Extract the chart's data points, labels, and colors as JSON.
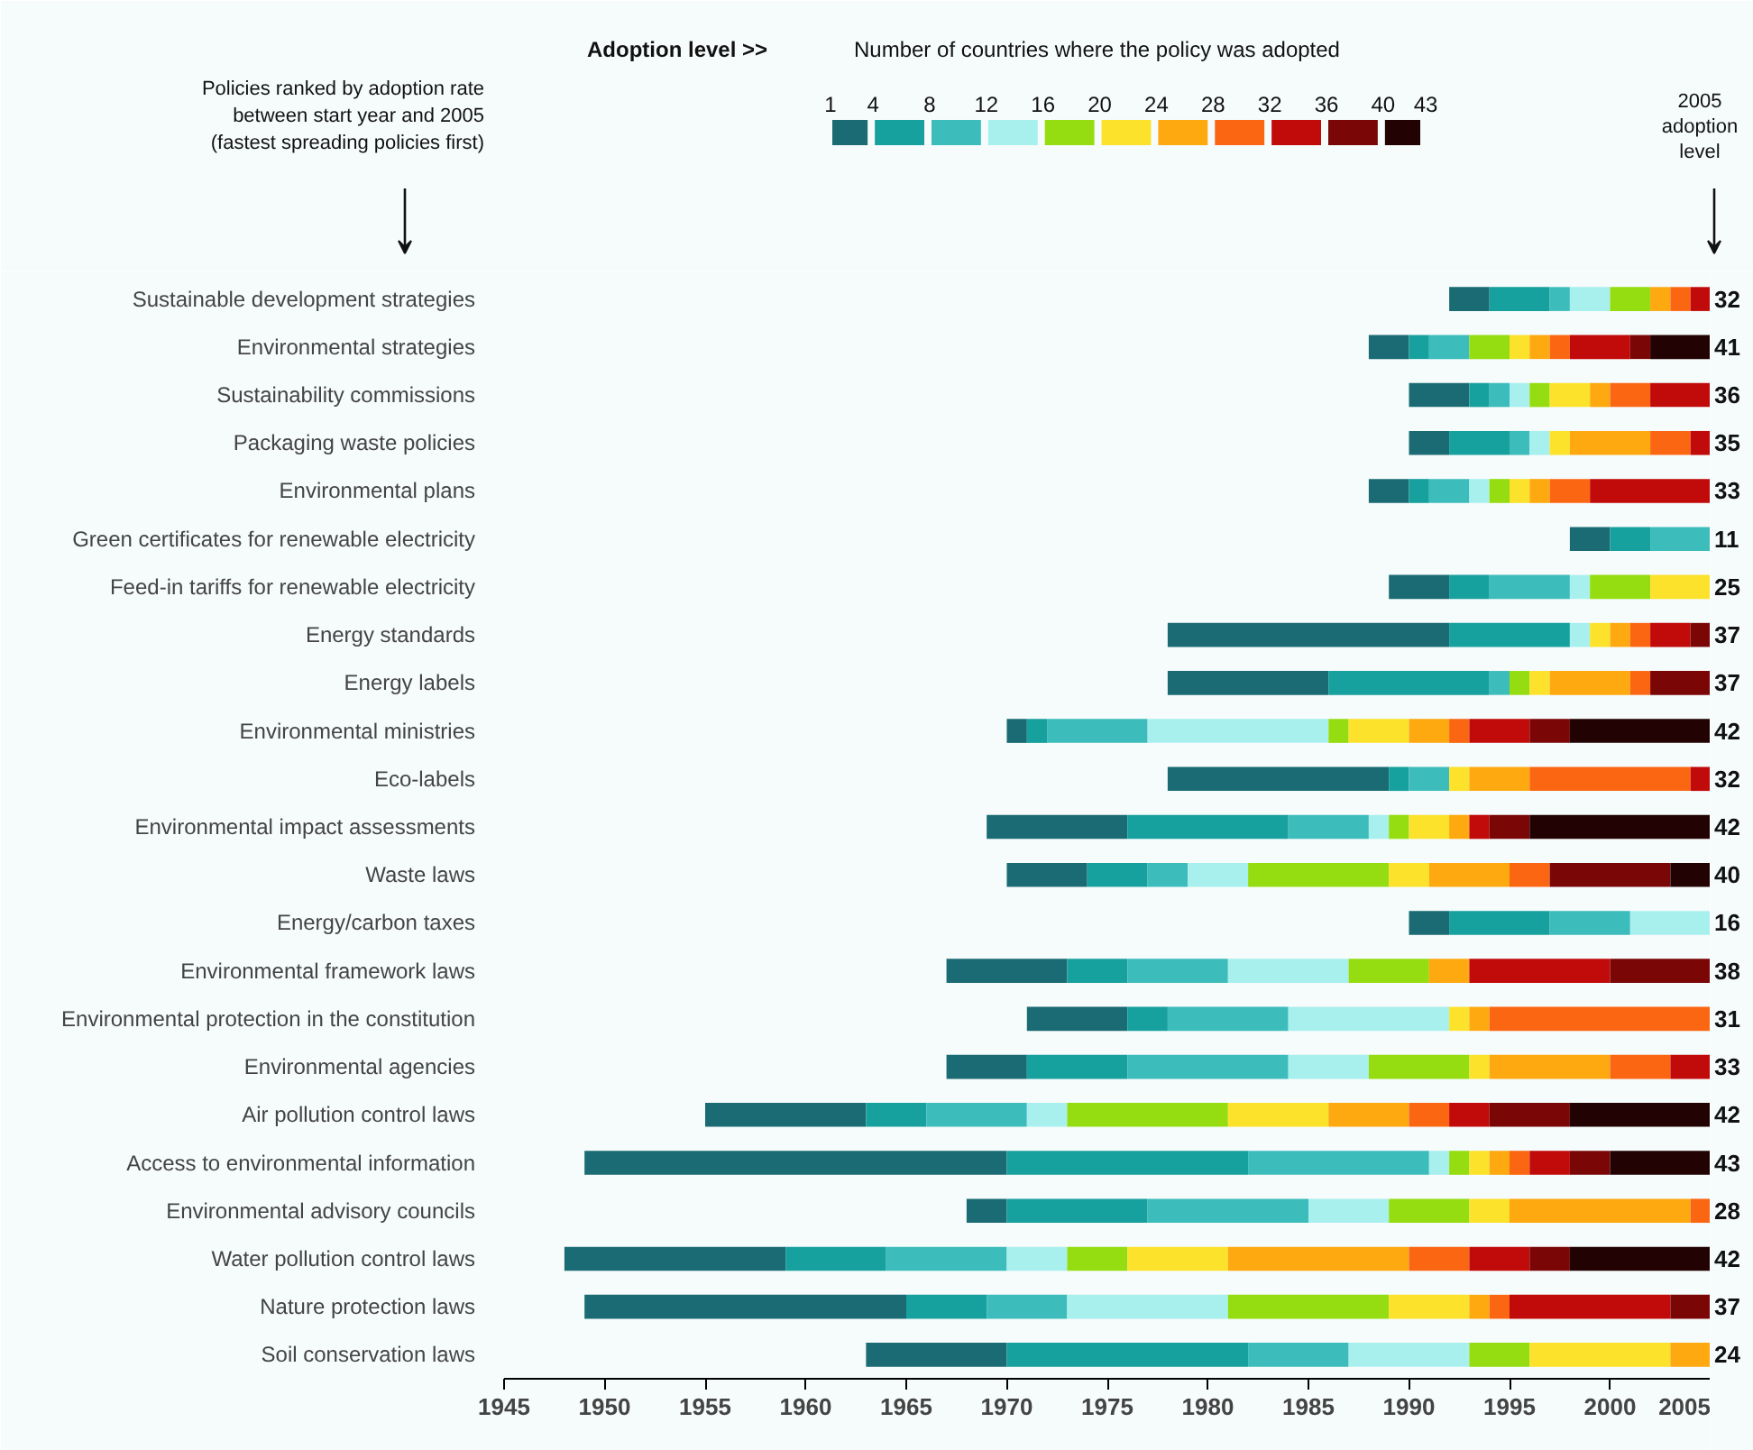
{
  "chart_data": {
    "type": "bar",
    "orientation": "horizontal",
    "legend_title": "Adoption level >>",
    "clabel": "Number of countries where the policy was adopted",
    "cticks": [
      1,
      4,
      8,
      12,
      16,
      20,
      24,
      28,
      32,
      36,
      40,
      43
    ],
    "categories": [
      "Sustainable development strategies",
      "Environmental strategies",
      "Sustainability commissions",
      "Packaging waste policies",
      "Environmental plans",
      "Green certificates for renewable electricity",
      "Feed-in tariffs for renewable electricity",
      "Energy standards",
      "Energy labels",
      "Environmental ministries",
      "Eco-labels",
      "Environmental impact assessments",
      "Waste laws",
      "Energy/carbon taxes",
      "Environmental framework laws",
      "Environmental protection in the constitution",
      "Environmental agencies",
      "Air pollution control laws",
      "Access to environmental information",
      "Environmental advisory councils",
      "Water pollution control laws",
      "Nature protection laws",
      "Soil conservation laws"
    ],
    "series": [
      {
        "color": "#1a6b73",
        "base": [
          1992,
          1988,
          1990,
          1990,
          1988,
          1998,
          1989,
          1978,
          1978,
          1970,
          1978,
          1969,
          1970,
          1990,
          1967,
          1971,
          1967,
          1955,
          1949,
          1968,
          1948,
          1949,
          1963
        ],
        "values": [
          2,
          2,
          3,
          2,
          2,
          2,
          3,
          14,
          8,
          1,
          11,
          7,
          4,
          2,
          6,
          5,
          4,
          8,
          21,
          2,
          11,
          16,
          7
        ]
      },
      {
        "color": "#16a09e",
        "base": [
          1994,
          1990,
          1993,
          1992,
          1990,
          2000,
          1992,
          1992,
          1986,
          1971,
          1989,
          1976,
          1974,
          1992,
          1973,
          1976,
          1971,
          1963,
          1970,
          1970,
          1959,
          1965,
          1970
        ],
        "values": [
          3,
          1,
          1,
          3,
          1,
          2,
          2,
          6,
          8,
          1,
          1,
          8,
          3,
          5,
          3,
          2,
          5,
          3,
          12,
          7,
          5,
          4,
          12
        ]
      },
      {
        "color": "#3dbcbc",
        "base": [
          1997,
          1991,
          1994,
          1995,
          1991,
          2002,
          1994,
          null,
          1994,
          1972,
          1990,
          1984,
          1977,
          1997,
          1976,
          1978,
          1976,
          1966,
          1982,
          1977,
          1964,
          1969,
          1982
        ],
        "values": [
          1,
          2,
          1,
          1,
          2,
          3,
          4,
          null,
          1,
          5,
          2,
          4,
          2,
          4,
          5,
          6,
          8,
          5,
          9,
          8,
          6,
          4,
          5
        ]
      },
      {
        "color": "#a8f0ee",
        "base": [
          1998,
          null,
          1995,
          1996,
          1993,
          null,
          1998,
          1998,
          null,
          1977,
          null,
          1988,
          1979,
          2001,
          1981,
          1984,
          1984,
          1971,
          1991,
          1985,
          1970,
          1973,
          1987
        ],
        "values": [
          2,
          null,
          1,
          1,
          1,
          null,
          1,
          1,
          null,
          9,
          null,
          1,
          3,
          4,
          6,
          8,
          4,
          2,
          1,
          4,
          3,
          8,
          6
        ]
      },
      {
        "color": "#95dd10",
        "base": [
          2000,
          1993,
          1996,
          null,
          1994,
          null,
          1999,
          null,
          1995,
          1986,
          null,
          1989,
          1982,
          null,
          1987,
          null,
          1988,
          1973,
          1992,
          1989,
          1973,
          1981,
          1993
        ],
        "values": [
          2,
          2,
          1,
          null,
          1,
          null,
          3,
          null,
          1,
          1,
          null,
          1,
          7,
          null,
          4,
          null,
          5,
          8,
          1,
          4,
          3,
          8,
          3
        ]
      },
      {
        "color": "#fce22a",
        "base": [
          null,
          1995,
          1997,
          1997,
          1995,
          null,
          2002,
          1999,
          1996,
          1987,
          1992,
          1990,
          1989,
          null,
          null,
          1992,
          1993,
          1981,
          1993,
          1993,
          1976,
          1989,
          1996
        ],
        "values": [
          null,
          1,
          2,
          1,
          1,
          null,
          3,
          1,
          1,
          3,
          1,
          2,
          2,
          null,
          null,
          1,
          1,
          5,
          1,
          2,
          5,
          4,
          7
        ]
      },
      {
        "color": "#fda90f",
        "base": [
          2002,
          1996,
          1999,
          1998,
          1996,
          null,
          null,
          2000,
          1997,
          1990,
          1993,
          1992,
          1991,
          null,
          1991,
          1993,
          1994,
          1986,
          1994,
          1995,
          1981,
          1993,
          2003
        ],
        "values": [
          1,
          1,
          1,
          4,
          1,
          null,
          null,
          1,
          4,
          2,
          3,
          1,
          4,
          null,
          2,
          1,
          6,
          4,
          1,
          9,
          9,
          1,
          2
        ]
      },
      {
        "color": "#fb6612",
        "base": [
          2003,
          1997,
          2000,
          2002,
          1997,
          null,
          null,
          2001,
          2001,
          1992,
          1996,
          null,
          1995,
          null,
          null,
          1994,
          2000,
          1990,
          1995,
          2004,
          1990,
          1994,
          null
        ],
        "values": [
          1,
          1,
          2,
          2,
          2,
          null,
          null,
          1,
          1,
          1,
          8,
          null,
          2,
          null,
          null,
          11,
          3,
          2,
          1,
          1,
          3,
          1,
          null
        ]
      },
      {
        "color": "#c10a0a",
        "base": [
          2004,
          1998,
          2002,
          2004,
          1999,
          null,
          null,
          2002,
          null,
          1993,
          2004,
          1993,
          null,
          null,
          1993,
          null,
          2003,
          1992,
          1996,
          null,
          1993,
          1995,
          null
        ],
        "values": [
          1,
          3,
          3,
          1,
          6,
          null,
          null,
          2,
          null,
          3,
          1,
          1,
          null,
          null,
          7,
          null,
          2,
          2,
          2,
          null,
          3,
          8,
          null
        ]
      },
      {
        "color": "#7a0606",
        "base": [
          null,
          2001,
          null,
          null,
          null,
          null,
          null,
          2004,
          2002,
          1996,
          null,
          1994,
          1997,
          null,
          2000,
          null,
          null,
          1994,
          1998,
          null,
          1996,
          2003,
          null
        ],
        "values": [
          null,
          1,
          null,
          null,
          null,
          null,
          null,
          1,
          3,
          2,
          null,
          2,
          6,
          null,
          5,
          null,
          null,
          4,
          2,
          null,
          2,
          2,
          null
        ]
      },
      {
        "color": "#220203",
        "base": [
          null,
          2002,
          null,
          null,
          null,
          null,
          null,
          null,
          null,
          1998,
          null,
          1996,
          2003,
          null,
          null,
          null,
          null,
          1998,
          2000,
          null,
          1998,
          null,
          null
        ],
        "values": [
          null,
          3,
          null,
          null,
          null,
          null,
          null,
          null,
          null,
          7,
          null,
          9,
          2,
          null,
          null,
          null,
          null,
          7,
          5,
          null,
          7,
          null,
          null
        ]
      }
    ],
    "xlim": [
      1945,
      2005
    ],
    "xticks": [
      1945,
      1950,
      1955,
      1960,
      1965,
      1970,
      1975,
      1980,
      1985,
      1990,
      1995,
      2000,
      2005
    ],
    "annotations": [
      "Policies ranked by adoption rate\nbetween start year and 2005\n(fastest spreading policies first)",
      "2005\nadoption\nlevel",
      "32",
      "41",
      "36",
      "35",
      "33",
      "11",
      "25",
      "37",
      "37",
      "42",
      "32",
      "42",
      "40",
      "16",
      "38",
      "31",
      "33",
      "42",
      "43",
      "28",
      "42",
      "37",
      "24"
    ]
  }
}
